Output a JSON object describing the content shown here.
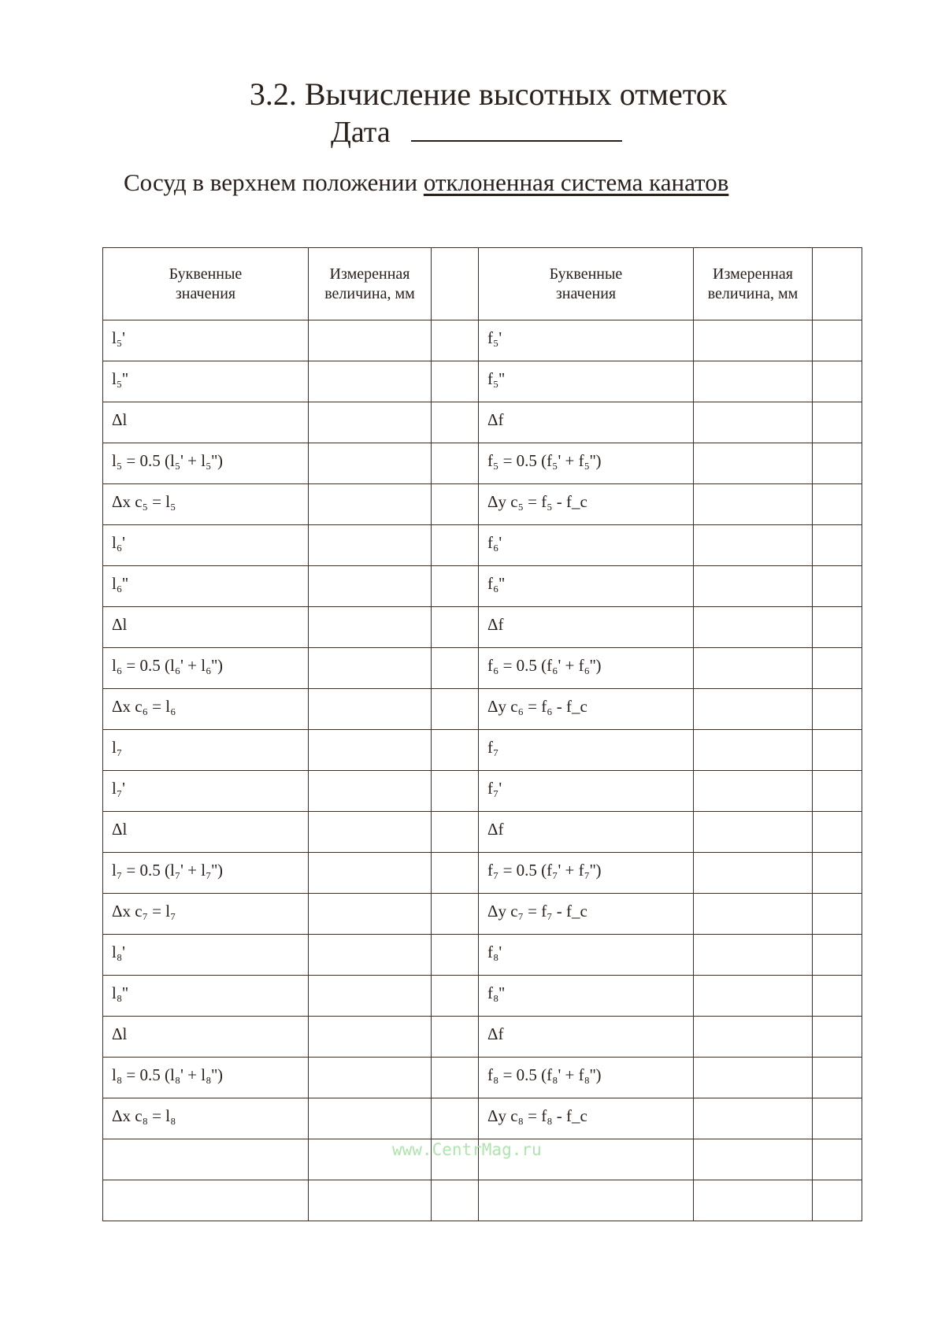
{
  "header": {
    "title": "3.2. Вычисление высотных отметок",
    "date_label": "Дата",
    "subtitle_prefix": "Сосуд в верхнем положении",
    "subtitle_underlined": "отклоненная система канатов"
  },
  "table": {
    "columns": [
      "Буквенные значения",
      "Измеренная величина, мм",
      "",
      "Буквенные значения",
      "Измеренная величина, мм",
      ""
    ],
    "rows": [
      [
        "l₅'",
        "f₅'"
      ],
      [
        "l₅''",
        "f₅''"
      ],
      [
        "Δl",
        "Δf"
      ],
      [
        "l₅ = 0.5 (l₅' + l₅'')",
        "f₅ = 0.5 (f₅' + f₅'')"
      ],
      [
        "Δx c₅ = l₅",
        "Δy c₅ = f₅ - f_c"
      ],
      [
        "l₆'",
        "f₆'"
      ],
      [
        "l₆''",
        "f₆''"
      ],
      [
        "Δl",
        "Δf"
      ],
      [
        "l₆ = 0.5 (l₆' + l₆'')",
        "f₆ = 0.5 (f₆' + f₆'')"
      ],
      [
        "Δx c₆ = l₆",
        "Δy c₆ = f₆ - f_c"
      ],
      [
        "l₇",
        "f₇"
      ],
      [
        "l₇'",
        "f₇'"
      ],
      [
        "Δl",
        "Δf"
      ],
      [
        "l₇ = 0.5 (l₇' + l₇'')",
        "f₇ = 0.5 (f₇' + f₇'')"
      ],
      [
        "Δx c₇ = l₇",
        "Δy c₇ = f₇ - f_c"
      ],
      [
        "l₈'",
        "f₈'"
      ],
      [
        "l₈''",
        "f₈''"
      ],
      [
        "Δl",
        "Δf"
      ],
      [
        "l₈ = 0.5 (l₈' + l₈'')",
        "f₈ = 0.5 (f₈' + f₈'')"
      ],
      [
        "Δx c₈ = l₈",
        "Δy c₈ = f₈ - f_c"
      ],
      [
        "",
        ""
      ],
      [
        "",
        ""
      ]
    ]
  },
  "watermark": "www.CentrMag.ru"
}
